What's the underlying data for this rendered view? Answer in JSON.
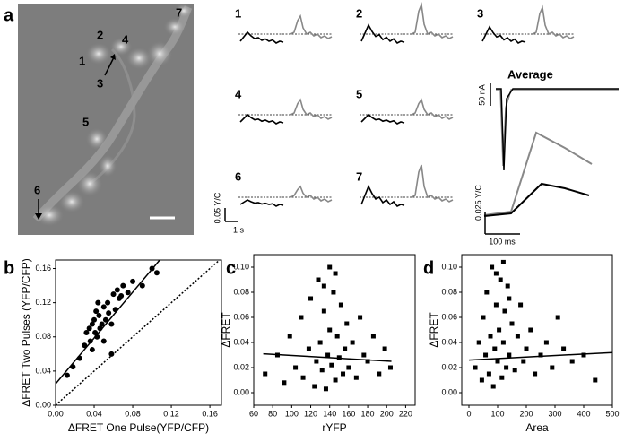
{
  "figure": {
    "a": {
      "letter": "a",
      "cells": [
        "1",
        "2",
        "3",
        "4",
        "5",
        "6",
        "7"
      ],
      "traces": [
        "1",
        "2",
        "3",
        "4",
        "5",
        "6",
        "7"
      ],
      "trace_scales": {
        "fret": "0.05 Y/C",
        "time": "1 s"
      },
      "average": {
        "title": "Average",
        "current_scale": "50 nA",
        "fret_scale": "0.025 Y/C",
        "time_scale": "100 ms"
      }
    },
    "b": {
      "letter": "b",
      "xlabel": "ΔFRET One Pulse(YFP/CFP)",
      "ylabel": "ΔFRET Two Pulses (YFP/CFP)",
      "xlim": [
        0,
        0.172
      ],
      "ylim": [
        0,
        0.17
      ],
      "xticks": [
        {
          "value": 0,
          "label": "0.00"
        },
        0.04,
        0.08,
        0.12,
        0.16
      ],
      "yticks": [
        {
          "value": 0,
          "label": "0.00"
        },
        0.04,
        0.08,
        0.12,
        0.16
      ],
      "x": [
        0.012,
        0.018,
        0.025,
        0.03,
        0.032,
        0.035,
        0.036,
        0.038,
        0.04,
        0.041,
        0.042,
        0.043,
        0.045,
        0.046,
        0.048,
        0.05,
        0.05,
        0.052,
        0.054,
        0.055,
        0.058,
        0.06,
        0.062,
        0.064,
        0.066,
        0.068,
        0.07,
        0.075,
        0.08,
        0.09,
        0.1,
        0.105,
        0.038,
        0.044,
        0.058
      ],
      "y": [
        0.035,
        0.045,
        0.055,
        0.07,
        0.085,
        0.09,
        0.075,
        0.095,
        0.1,
        0.085,
        0.11,
        0.08,
        0.105,
        0.09,
        0.095,
        0.115,
        0.075,
        0.1,
        0.12,
        0.108,
        0.095,
        0.13,
        0.112,
        0.135,
        0.125,
        0.128,
        0.14,
        0.132,
        0.145,
        0.14,
        0.16,
        0.155,
        0.065,
        0.12,
        0.06
      ],
      "fit": {
        "x": [
          0,
          0.108
        ],
        "y": [
          0.025,
          0.17
        ]
      },
      "identity": {
        "x": [
          0,
          0.17
        ],
        "y": [
          0,
          0.17
        ]
      }
    },
    "c": {
      "letter": "c",
      "xlabel": "rYFP",
      "ylabel": "ΔFRET",
      "xlim": [
        60,
        230
      ],
      "ylim": [
        -0.01,
        0.11
      ],
      "xticks": [
        60,
        80,
        100,
        120,
        140,
        160,
        180,
        200,
        220
      ],
      "yticks": [
        {
          "value": 0,
          "label": "0.00"
        },
        0.02,
        0.04,
        0.06,
        0.08,
        {
          "value": 0.1,
          "label": "0.10"
        }
      ],
      "x": [
        72,
        85,
        92,
        98,
        104,
        110,
        112,
        118,
        120,
        124,
        126,
        128,
        130,
        132,
        134,
        136,
        138,
        140,
        140,
        142,
        144,
        146,
        148,
        150,
        152,
        154,
        156,
        158,
        160,
        164,
        168,
        172,
        176,
        180,
        186,
        192,
        198,
        204,
        134,
        146
      ],
      "y": [
        0.015,
        0.03,
        0.008,
        0.045,
        0.02,
        0.06,
        0.012,
        0.035,
        0.075,
        0.005,
        0.025,
        0.09,
        0.04,
        0.018,
        0.065,
        0.003,
        0.03,
        0.1,
        0.05,
        0.022,
        0.08,
        0.01,
        0.045,
        0.028,
        0.07,
        0.015,
        0.035,
        0.055,
        0.02,
        0.04,
        0.012,
        0.06,
        0.03,
        0.025,
        0.045,
        0.015,
        0.035,
        0.02,
        0.085,
        0.095
      ],
      "fit": {
        "x": [
          70,
          205
        ],
        "y": [
          0.031,
          0.025
        ]
      }
    },
    "d": {
      "letter": "d",
      "xlabel": "Area",
      "ylabel": "ΔFRET",
      "xlim": [
        -25,
        500
      ],
      "ylim": [
        -0.01,
        0.11
      ],
      "xticks": [
        0,
        100,
        200,
        300,
        400,
        500
      ],
      "yticks": [
        {
          "value": 0,
          "label": "0.00"
        },
        0.02,
        0.04,
        0.06,
        0.08,
        {
          "value": 0.1,
          "label": "0.10"
        }
      ],
      "x": [
        22,
        35,
        45,
        50,
        58,
        62,
        70,
        75,
        80,
        85,
        90,
        95,
        100,
        105,
        110,
        115,
        120,
        125,
        130,
        135,
        140,
        150,
        160,
        170,
        180,
        190,
        200,
        215,
        230,
        250,
        270,
        290,
        310,
        330,
        360,
        400,
        440,
        95,
        120,
        140
      ],
      "y": [
        0.02,
        0.04,
        0.01,
        0.06,
        0.03,
        0.08,
        0.015,
        0.045,
        0.1,
        0.005,
        0.035,
        0.07,
        0.025,
        0.05,
        0.09,
        0.012,
        0.04,
        0.065,
        0.02,
        0.085,
        0.03,
        0.055,
        0.018,
        0.045,
        0.07,
        0.025,
        0.035,
        0.05,
        0.015,
        0.03,
        0.04,
        0.02,
        0.06,
        0.035,
        0.025,
        0.03,
        0.01,
        0.095,
        0.104,
        0.075
      ],
      "fit": {
        "x": [
          0,
          500
        ],
        "y": [
          0.026,
          0.032
        ]
      }
    }
  }
}
